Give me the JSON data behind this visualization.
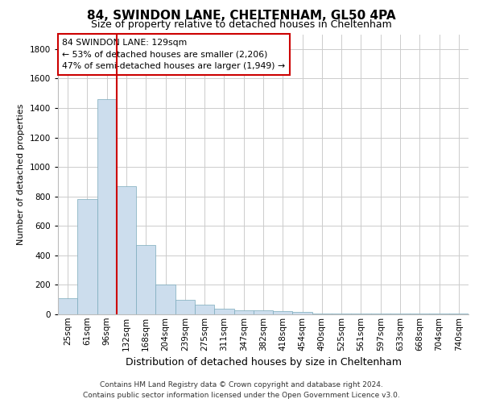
{
  "title1": "84, SWINDON LANE, CHELTENHAM, GL50 4PA",
  "title2": "Size of property relative to detached houses in Cheltenham",
  "xlabel": "Distribution of detached houses by size in Cheltenham",
  "ylabel": "Number of detached properties",
  "footer1": "Contains HM Land Registry data © Crown copyright and database right 2024.",
  "footer2": "Contains public sector information licensed under the Open Government Licence v3.0.",
  "annotation_line1": "84 SWINDON LANE: 129sqm",
  "annotation_line2": "← 53% of detached houses are smaller (2,206)",
  "annotation_line3": "47% of semi-detached houses are larger (1,949) →",
  "bar_color": "#ccdded",
  "bar_edge_color": "#7aaabb",
  "vline_color": "#cc0000",
  "annotation_box_edgecolor": "#cc0000",
  "categories": [
    "25sqm",
    "61sqm",
    "96sqm",
    "132sqm",
    "168sqm",
    "204sqm",
    "239sqm",
    "275sqm",
    "311sqm",
    "347sqm",
    "382sqm",
    "418sqm",
    "454sqm",
    "490sqm",
    "525sqm",
    "561sqm",
    "597sqm",
    "633sqm",
    "668sqm",
    "704sqm",
    "740sqm"
  ],
  "values": [
    110,
    780,
    1460,
    870,
    470,
    200,
    100,
    65,
    40,
    30,
    25,
    20,
    15,
    5,
    5,
    5,
    3,
    3,
    3,
    3,
    3
  ],
  "ylim": [
    0,
    1900
  ],
  "yticks": [
    0,
    200,
    400,
    600,
    800,
    1000,
    1200,
    1400,
    1600,
    1800
  ],
  "vline_x": 2.5,
  "grid_color": "#cccccc",
  "background_color": "#ffffff",
  "title1_fontsize": 11,
  "title2_fontsize": 9,
  "xlabel_fontsize": 9,
  "ylabel_fontsize": 8,
  "tick_fontsize": 7.5,
  "footer_fontsize": 6.5
}
